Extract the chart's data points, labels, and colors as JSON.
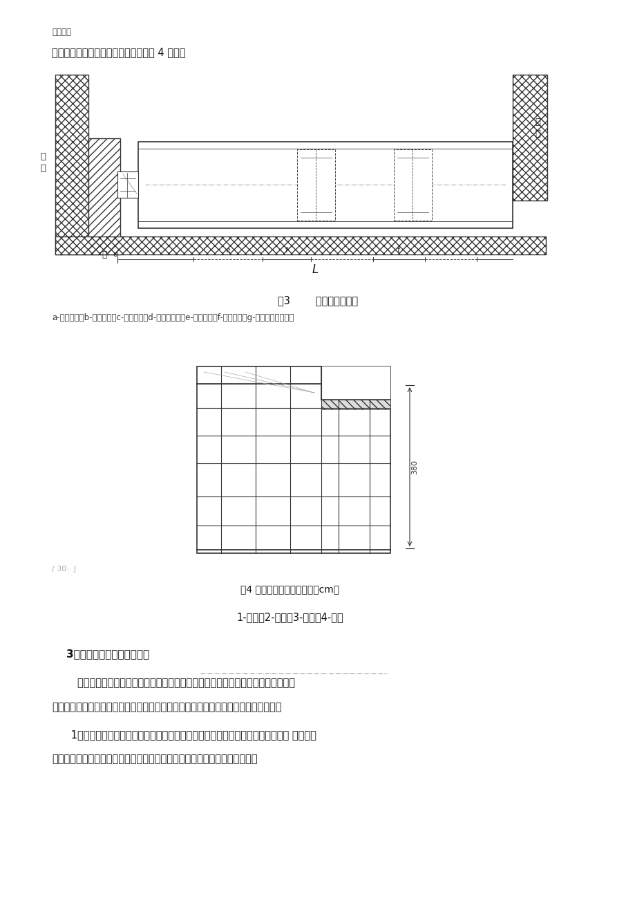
{
  "bg_color": "#ffffff",
  "page_width": 9.2,
  "page_height": 13.03,
  "header_text": "精品文档",
  "intro_text": "不稳定的工作坑坑壁应加设支撑，如图 4 所示。",
  "fig3_caption": "图3        工作坑底的长度",
  "fig3_legend": "a-后背宽度；b-立铁宽度；c-横铁宽度；d-千斤顶长度；e-顺铁长度；f-单节管长；g-已顶入的管子全长",
  "fig4_caption": "图4 工作坑坑壁支撑（单位：cm）",
  "fig4_legend": "1-坑壁；2-撑板；3-横木；4-撑杠",
  "section3_title": "    3、顶管工作坑的基础与导轨",
  "para1": "        为了防止工作坑地基沉降，导致管道顶进位置误差过大，应在坑底修筑基础或加固",
  "para2": "地基。基础的形式取决于坑底土质、管节重量和地下水等因素。一般有以下三种形式：",
  "para3": "      1）土槽木枕基础。适用于土质较好，又无地下水的工作坑。这种基础施工操作简 便、用料",
  "para4": "少，可在方木上直接铺设导轨，方木根据需要可密铺或疏铺。这种方法是目前",
  "footer_text": "/ 30:  J"
}
